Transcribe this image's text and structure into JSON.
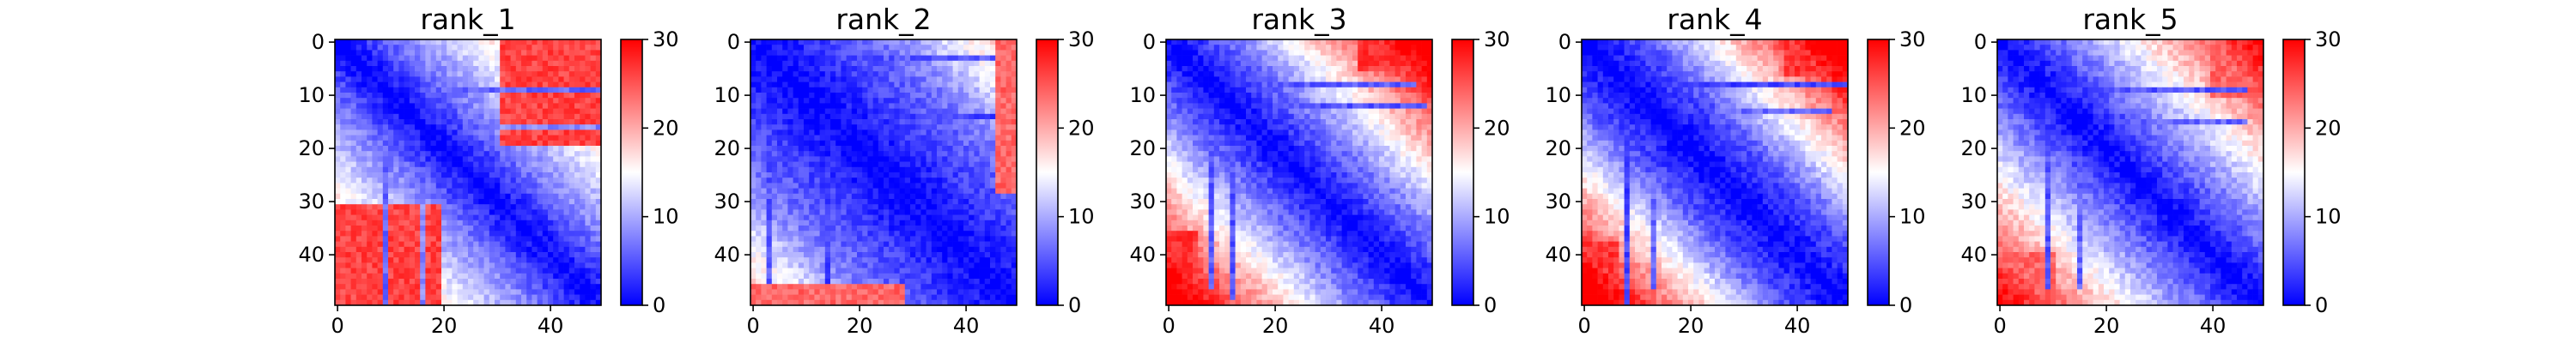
{
  "chart_data": [
    {
      "type": "heatmap",
      "title": "rank_1",
      "size": 50,
      "colormap": "bwr",
      "vmin": 0,
      "vmax": 30,
      "xticks": [
        0,
        20,
        40
      ],
      "yticks": [
        0,
        10,
        20,
        30,
        40
      ],
      "colorbar_ticks": [
        0,
        10,
        20,
        30
      ],
      "pattern": {
        "near_slope": 0.6,
        "far_slope": 0.5,
        "break_distance": 12,
        "gamma": 1.0,
        "base": 0
      },
      "features": [
        {
          "kind": "rect",
          "r0": 31,
          "r1": 49,
          "c0": 0,
          "c1": 19,
          "value": 26
        },
        {
          "kind": "col",
          "col": 9,
          "r0": 18,
          "r1": 49,
          "value": 6
        },
        {
          "kind": "col",
          "col": 16,
          "r0": 20,
          "r1": 49,
          "value": 8
        }
      ]
    },
    {
      "type": "heatmap",
      "title": "rank_2",
      "size": 50,
      "colormap": "bwr",
      "vmin": 0,
      "vmax": 30,
      "xticks": [
        0,
        20,
        40
      ],
      "yticks": [
        0,
        10,
        20,
        30,
        40
      ],
      "colorbar_ticks": [
        0,
        10,
        20,
        30
      ],
      "pattern": {
        "near_slope": 0.28,
        "far_slope": 0.55,
        "break_distance": 26,
        "gamma": 1.0,
        "base": 0
      },
      "features": [
        {
          "kind": "rect",
          "r0": 46,
          "r1": 49,
          "c0": 0,
          "c1": 28,
          "value": 24
        },
        {
          "kind": "col",
          "col": 3,
          "r0": 20,
          "r1": 45,
          "value": 5
        },
        {
          "kind": "col",
          "col": 14,
          "r0": 28,
          "r1": 45,
          "value": 4
        }
      ]
    },
    {
      "type": "heatmap",
      "title": "rank_3",
      "size": 50,
      "colormap": "bwr",
      "vmin": 0,
      "vmax": 30,
      "xticks": [
        0,
        20,
        40
      ],
      "yticks": [
        0,
        10,
        20,
        30,
        40
      ],
      "colorbar_ticks": [
        0,
        10,
        20,
        30
      ],
      "pattern": {
        "near_slope": 0.55,
        "far_slope": 0.75,
        "break_distance": 14,
        "gamma": 1.0,
        "base": 0
      },
      "features": [
        {
          "kind": "rect",
          "r0": 36,
          "r1": 49,
          "c0": 0,
          "c1": 5,
          "value": 27
        },
        {
          "kind": "col",
          "col": 8,
          "r0": 20,
          "r1": 46,
          "value": 5
        },
        {
          "kind": "col",
          "col": 12,
          "r0": 24,
          "r1": 48,
          "value": 5
        }
      ]
    },
    {
      "type": "heatmap",
      "title": "rank_4",
      "size": 50,
      "colormap": "bwr",
      "vmin": 0,
      "vmax": 30,
      "xticks": [
        0,
        20,
        40
      ],
      "yticks": [
        0,
        10,
        20,
        30,
        40
      ],
      "colorbar_ticks": [
        0,
        10,
        20,
        30
      ],
      "pattern": {
        "near_slope": 0.45,
        "far_slope": 0.8,
        "break_distance": 12,
        "gamma": 1.0,
        "base": 0
      },
      "features": [
        {
          "kind": "rect",
          "r0": 38,
          "r1": 49,
          "c0": 0,
          "c1": 6,
          "value": 27
        },
        {
          "kind": "col",
          "col": 8,
          "r0": 18,
          "r1": 49,
          "value": 4
        },
        {
          "kind": "col",
          "col": 13,
          "r0": 22,
          "r1": 46,
          "value": 6
        }
      ]
    },
    {
      "type": "heatmap",
      "title": "rank_5",
      "size": 50,
      "colormap": "bwr",
      "vmin": 0,
      "vmax": 30,
      "xticks": [
        0,
        20,
        40
      ],
      "yticks": [
        0,
        10,
        20,
        30,
        40
      ],
      "colorbar_ticks": [
        0,
        10,
        20,
        30
      ],
      "pattern": {
        "near_slope": 0.55,
        "far_slope": 0.65,
        "break_distance": 14,
        "gamma": 1.0,
        "base": 0
      },
      "features": [
        {
          "kind": "rect",
          "r0": 40,
          "r1": 49,
          "c0": 0,
          "c1": 10,
          "value": 24
        },
        {
          "kind": "col",
          "col": 9,
          "r0": 18,
          "r1": 46,
          "value": 5
        },
        {
          "kind": "col",
          "col": 15,
          "r0": 20,
          "r1": 46,
          "value": 6
        }
      ]
    }
  ]
}
